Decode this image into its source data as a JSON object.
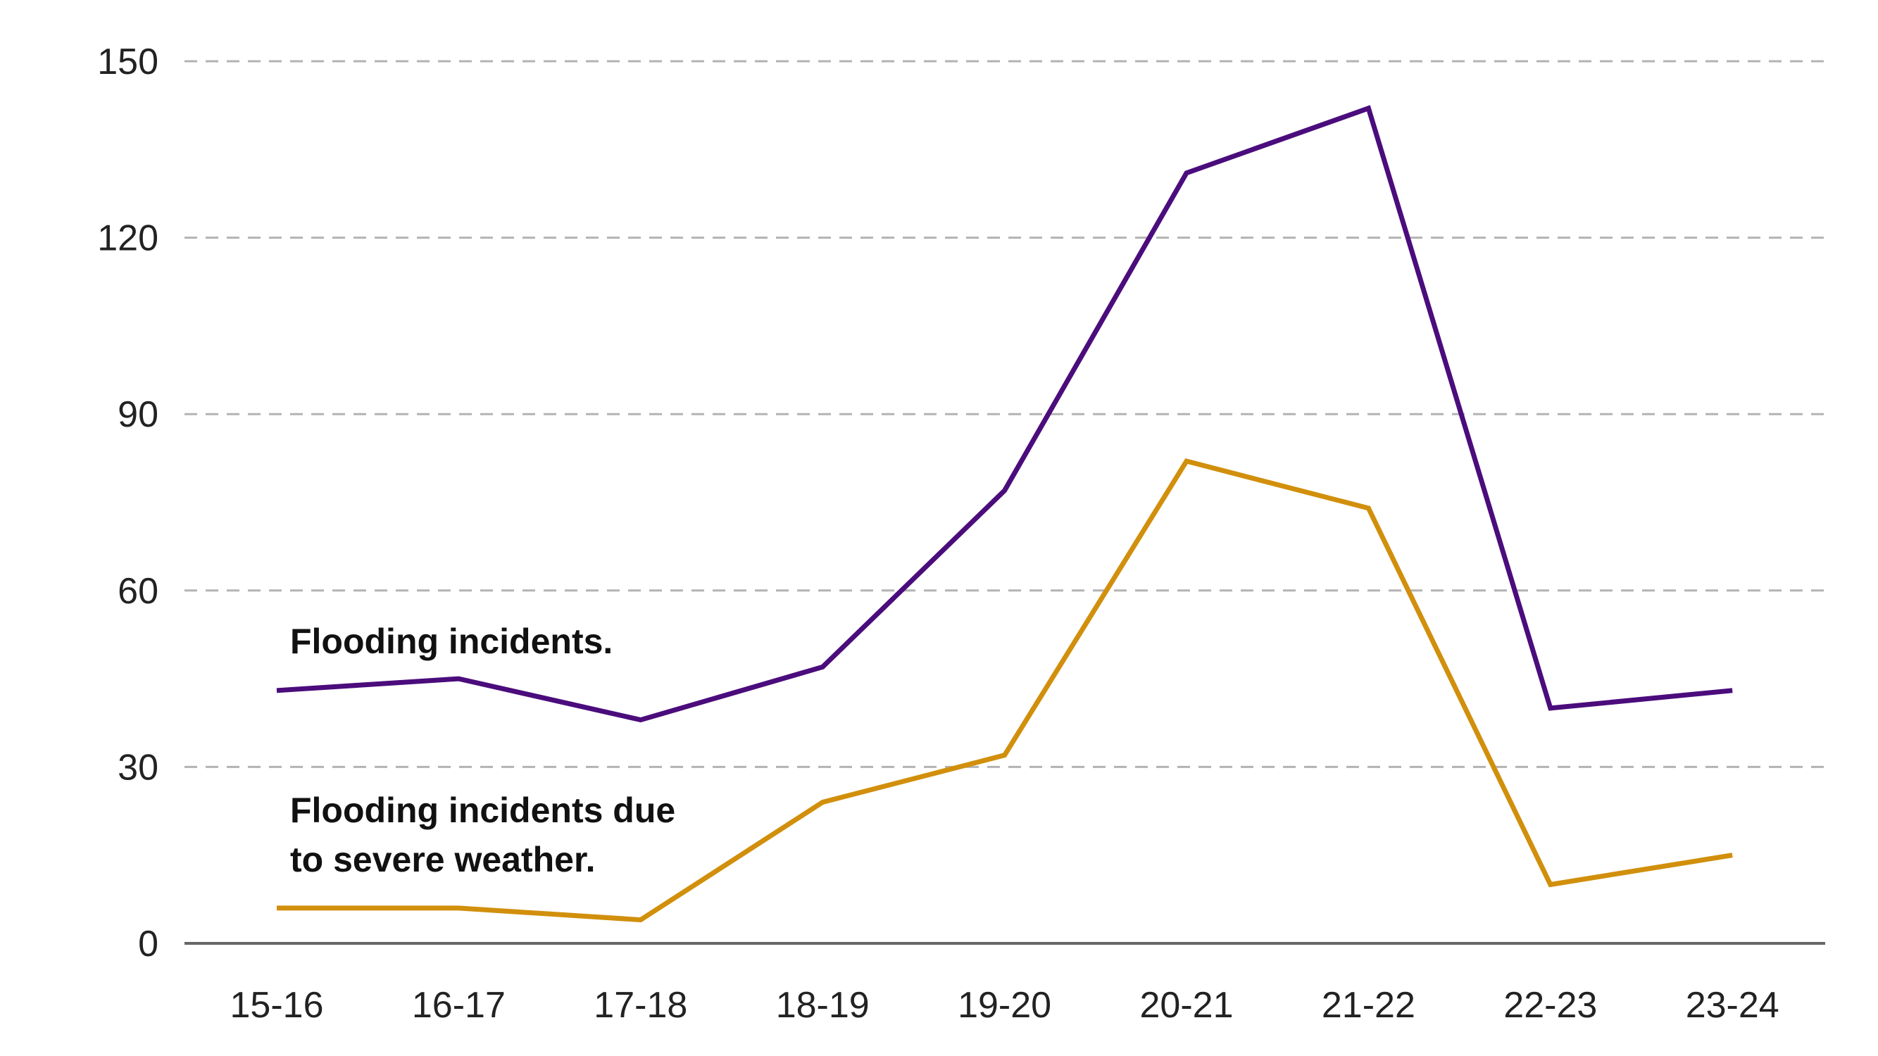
{
  "chart_data": {
    "type": "line",
    "title": "",
    "xlabel": "",
    "ylabel": "",
    "categories": [
      "15-16",
      "16-17",
      "17-18",
      "18-19",
      "19-20",
      "20-21",
      "21-22",
      "22-23",
      "23-24"
    ],
    "ylim": [
      0,
      150
    ],
    "yticks": [
      0,
      30,
      60,
      90,
      120,
      150
    ],
    "grid": true,
    "legend": "inline labels",
    "series": [
      {
        "name": "Flooding incidents.",
        "color": "#4b0c7c",
        "values": [
          43,
          45,
          38,
          47,
          77,
          131,
          142,
          40,
          43
        ]
      },
      {
        "name": "Flooding incidents due to severe weather.",
        "color": "#d18f0c",
        "values": [
          6,
          6,
          4,
          24,
          32,
          82,
          74,
          10,
          15
        ]
      }
    ],
    "annotations": {
      "series0": [
        "Flooding incidents."
      ],
      "series1": [
        "Flooding incidents due",
        "to severe weather."
      ]
    }
  }
}
